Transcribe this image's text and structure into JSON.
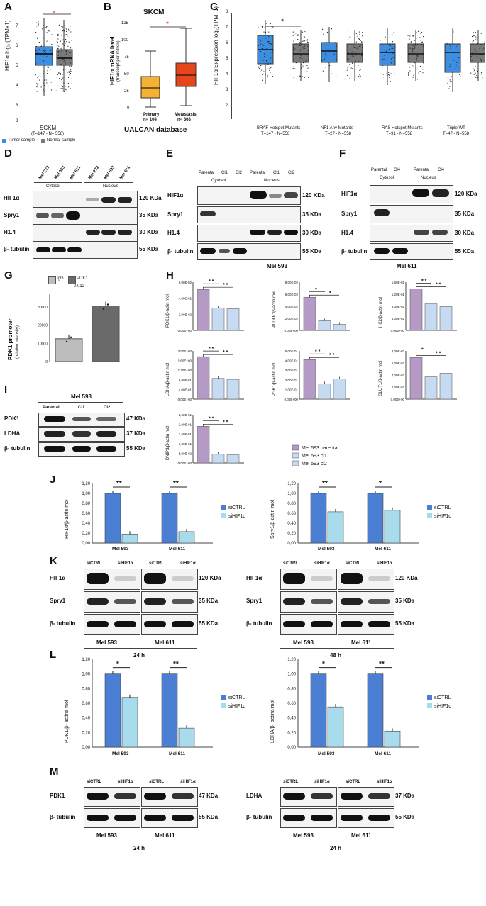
{
  "colors": {
    "tumor": "#3d8ee0",
    "normal": "#7a7a7a",
    "primary": "#f5b133",
    "metastasis": "#e5461a",
    "purple": "#b49ac4",
    "lightblue": "#c6daf2",
    "siCTRL": "#4a7fd4",
    "siHIF": "#a8dced",
    "asterisk_red": "#e23a3a"
  },
  "panels": {
    "A": "A",
    "B": "B",
    "C": "C",
    "D": "D",
    "E": "E",
    "F": "F",
    "G": "G",
    "H": "H",
    "I": "I",
    "J": "J",
    "K": "K",
    "L": "L",
    "M": "M"
  },
  "panel_a": {
    "ylabel": "HIF1α log₂ (TPM+1)",
    "yticks": [
      "7",
      "6",
      "5",
      "4",
      "3",
      "2"
    ],
    "xlabel": "SCKM",
    "xsub": "(T=147 - N= 558)",
    "star": "*",
    "legend": [
      {
        "label": "Tumor sample"
      },
      {
        "label": "Normal sample"
      }
    ]
  },
  "panel_b": {
    "title": "SKCM",
    "ylabel": "HIF1α mRNA level",
    "ylabel2": "(transcript per million)",
    "yticks": [
      "125",
      "100",
      "75",
      "50",
      "25",
      "0"
    ],
    "cats": [
      {
        "name": "Primary",
        "n": "n= 104"
      },
      {
        "name": "Metastasis",
        "n": "n= 368"
      }
    ],
    "star": "*",
    "footer": "UALCAN database"
  },
  "panel_c": {
    "ylabel": "HIF1α Expression log₂(TPM+1)",
    "yticks": [
      "8",
      "7",
      "6",
      "5",
      "4",
      "3",
      "2"
    ],
    "groups": [
      {
        "name": "BRAF Hotspot Mutants",
        "n": "T=147 - N=558"
      },
      {
        "name": "NF1 Any Mutants",
        "n": "T=27 - N=558"
      },
      {
        "name": "RAS Hotspot Mutants",
        "n": "T=91 - N=558"
      },
      {
        "name": "Triple WT",
        "n": "T=47 - N=558"
      }
    ],
    "star": "*"
  },
  "panel_d": {
    "lanes": [
      "Mel 272",
      "Mel 593",
      "Mel 611",
      "Mel 272",
      "Mel 593",
      "Mel 611"
    ],
    "fractions": [
      "Cytosol",
      "Nucleus"
    ],
    "rows": [
      {
        "name": "HIF1α",
        "size": "120 KDa"
      },
      {
        "name": "Spry1",
        "size": "35 KDa"
      },
      {
        "name": "H1.4",
        "size": "30 KDa"
      },
      {
        "name": "β- tubulin",
        "size": "55 KDa"
      }
    ]
  },
  "panel_e": {
    "lanes": [
      "Parental",
      "Cl1",
      "Cl2",
      "Parental",
      "Cl1",
      "Cl2"
    ],
    "fractions": [
      "Cytosol",
      "Nucleus"
    ],
    "rows": [
      {
        "name": "HIF1α",
        "size": "120 KDa"
      },
      {
        "name": "Spry1",
        "size": "35 KDa"
      },
      {
        "name": "H1.4",
        "size": "30 KDa"
      },
      {
        "name": "β- tubulin",
        "size": "55 KDa"
      }
    ],
    "cell": "Mel 593"
  },
  "panel_f": {
    "lanes": [
      "Parental",
      "Cl4",
      "Parental",
      "Cl4"
    ],
    "fractions": [
      "Cytosol",
      "Nucleus"
    ],
    "rows": [
      {
        "name": "HIF1α",
        "size": "120 KDa"
      },
      {
        "name": "Spry1",
        "size": "35 KDa"
      },
      {
        "name": "H1.4",
        "size": "30 KDa"
      },
      {
        "name": "β- tubulin",
        "size": "55 KDa"
      }
    ],
    "cell": "Mel 611"
  },
  "panel_g": {
    "legend": [
      "IgG",
      "PDK1"
    ],
    "pvalue": "0.012",
    "ylabel": "PDK1 promoter",
    "ylabel2": "(relative intensity)",
    "yticks": [
      "30000",
      "20000",
      "10000",
      "0"
    ]
  },
  "panel_h": {
    "charts": [
      {
        "ylabel": "PDK1/β-actin mol",
        "yticks": [
          "6,00E-02",
          "4,00E-02",
          "2,00E-02",
          "0,00E+00"
        ],
        "stars": [
          "* *",
          "* *"
        ]
      },
      {
        "ylabel": "ALDOC/β-actin mol",
        "yticks": [
          "8,00E-02",
          "6,00E-02",
          "4,00E-02",
          "2,00E-02",
          "0,00E+00"
        ],
        "stars": [
          "*",
          "*"
        ]
      },
      {
        "ylabel": "HK2/β-actin mol",
        "yticks": [
          "1,60E-01",
          "1,20E-01",
          "8,00E-02",
          "4,00E-02",
          "0,00E+00"
        ],
        "stars": [
          "* *",
          "* *"
        ]
      },
      {
        "ylabel": "LDHA/β-actin mol",
        "yticks": [
          "2,00E+00",
          "1,60E+00",
          "1,20E+00",
          "8,00E-01",
          "4,00E-01",
          "0,00E+00"
        ],
        "stars": [
          "* *",
          "* *"
        ]
      },
      {
        "ylabel": "PGK1/β-actin mol",
        "yticks": [
          "5,00E-01",
          "4,00E-01",
          "3,00E-01",
          "2,00E-01",
          "1,00E-01",
          "0,00E+00"
        ],
        "stars": [
          "* *",
          "* *"
        ]
      },
      {
        "ylabel": "GLUT1/β-actin mol",
        "yticks": [
          "8,00E-02",
          "6,00E-02",
          "4,00E-02",
          "2,00E-02",
          "0,00E+00"
        ],
        "stars": [
          "*",
          "* *"
        ]
      },
      {
        "ylabel": "BNIP3/β-actin mol",
        "yticks": [
          "2,50E-01",
          "2,00E-01",
          "1,50E-01",
          "1,00E-01",
          "5,00E-02",
          "0,00E+00"
        ],
        "stars": [
          "* *",
          "* *"
        ]
      }
    ],
    "legend": [
      "Mel 593 parental",
      "Mel 593 cl1",
      "Mel 593 cl2"
    ]
  },
  "panel_i": {
    "cell": "Mel 593",
    "lanes": [
      "Parental",
      "Cl1",
      "Cl2"
    ],
    "rows": [
      {
        "name": "PDK1",
        "size": "47 KDa"
      },
      {
        "name": "LDHA",
        "size": "37 KDa"
      },
      {
        "name": "β- tubulin",
        "size": "55 KDa"
      }
    ]
  },
  "panel_j": {
    "charts": [
      {
        "ylabel": "HIF1α/β-actin mol",
        "cats": [
          "Mel 593",
          "Mel 611"
        ],
        "stars": [
          "**",
          "**"
        ]
      },
      {
        "ylabel": "Spry1/β-actin mol",
        "cats": [
          "Mel 593",
          "Mel 611"
        ],
        "stars": [
          "**",
          "*"
        ]
      }
    ],
    "yticks": [
      "1,20",
      "1,00",
      "0,80",
      "0,60",
      "0,40",
      "0,20",
      "0,00"
    ],
    "legend": [
      "siCTRL",
      "siHIF1α"
    ]
  },
  "panel_k": {
    "lanes": [
      "siCTRL",
      "siHIF1α",
      "siCTRL",
      "siHIF1α"
    ],
    "rows": [
      {
        "name": "HIF1α",
        "size": "120 KDa"
      },
      {
        "name": "Spry1",
        "size": "35 KDa"
      },
      {
        "name": "β- tubulin",
        "size": "55 KDa"
      }
    ],
    "cells": [
      "Mel 593",
      "Mel 611"
    ],
    "times": [
      "24 h",
      "48 h"
    ]
  },
  "panel_l": {
    "charts": [
      {
        "ylabel": "PDK1/β- actina mol",
        "cats": [
          "Mel 593",
          "Mel 611"
        ],
        "stars": [
          "*",
          "**"
        ]
      },
      {
        "ylabel": "LDHA/β- actina mol",
        "cats": [
          "Mel 593",
          "Mel 611"
        ],
        "stars": [
          "*",
          "**"
        ]
      }
    ],
    "yticks": [
      "1,20",
      "1,00",
      "0,80",
      "0,60",
      "0,40",
      "0,20",
      "0,00"
    ],
    "legend": [
      "siCTRL",
      "siHIF1α"
    ]
  },
  "panel_m": {
    "lanes": [
      "siCTRL",
      "siHIF1α",
      "siCTRL",
      "siHIF1α"
    ],
    "left_rows": [
      {
        "name": "PDK1",
        "size": "47 KDa"
      },
      {
        "name": "β- tubulin",
        "size": "55 KDa"
      }
    ],
    "right_rows": [
      {
        "name": "LDHA",
        "size": "37 KDa"
      },
      {
        "name": "β- tubulin",
        "size": "55 KDa"
      }
    ],
    "cells": [
      "Mel 593",
      "Mel 611"
    ],
    "time": "24 h"
  },
  "chart_data": [
    {
      "type": "bar",
      "panel": "G",
      "categories": [
        "IgG",
        "PDK1"
      ],
      "values": [
        12500,
        30500
      ],
      "ylim": [
        0,
        35000
      ]
    },
    {
      "type": "bar",
      "panel": "H",
      "title": "",
      "ylabel": "PDK1/β-actin mol",
      "categories": [
        "Mel 593 parental",
        "Mel 593 cl1",
        "Mel 593 cl2"
      ],
      "values": [
        0.051,
        0.028,
        0.027
      ],
      "ylim": [
        0,
        0.06
      ]
    },
    {
      "type": "bar",
      "panel": "H",
      "ylabel": "ALDOC/β-actin mol",
      "categories": [
        "Mel 593 parental",
        "Mel 593 cl1",
        "Mel 593 cl2"
      ],
      "values": [
        0.055,
        0.016,
        0.01
      ],
      "ylim": [
        0,
        0.08
      ]
    },
    {
      "type": "bar",
      "panel": "H",
      "ylabel": "HK2/β-actin mol",
      "categories": [
        "Mel 593 parental",
        "Mel 593 cl1",
        "Mel 593 cl2"
      ],
      "values": [
        0.138,
        0.088,
        0.079
      ],
      "ylim": [
        0,
        0.16
      ]
    },
    {
      "type": "bar",
      "panel": "H",
      "ylabel": "LDHA/β-actin mol",
      "categories": [
        "Mel 593 parental",
        "Mel 593 cl1",
        "Mel 593 cl2"
      ],
      "values": [
        1.76,
        0.86,
        0.82
      ],
      "ylim": [
        0,
        2.0
      ]
    },
    {
      "type": "bar",
      "panel": "H",
      "ylabel": "PGK1/β-actin mol",
      "categories": [
        "Mel 593 parental",
        "Mel 593 cl1",
        "Mel 593 cl2"
      ],
      "values": [
        0.41,
        0.16,
        0.21
      ],
      "ylim": [
        0,
        0.5
      ]
    },
    {
      "type": "bar",
      "panel": "H",
      "ylabel": "GLUT1/β-actin mol",
      "categories": [
        "Mel 593 parental",
        "Mel 593 cl1",
        "Mel 593 cl2"
      ],
      "values": [
        0.069,
        0.037,
        0.043
      ],
      "ylim": [
        0,
        0.08
      ]
    },
    {
      "type": "bar",
      "panel": "H",
      "ylabel": "BNIP3/β-actin mol",
      "categories": [
        "Mel 593 parental",
        "Mel 593 cl1",
        "Mel 593 cl2"
      ],
      "values": [
        0.19,
        0.045,
        0.042
      ],
      "ylim": [
        0,
        0.25
      ]
    },
    {
      "type": "bar",
      "panel": "J",
      "ylabel": "HIF1α/β-actin mol",
      "categories": [
        "Mel 593",
        "Mel 611"
      ],
      "series": [
        {
          "name": "siCTRL",
          "values": [
            1.0,
            1.0
          ]
        },
        {
          "name": "siHIF1α",
          "values": [
            0.18,
            0.23
          ]
        }
      ],
      "ylim": [
        0,
        1.2
      ]
    },
    {
      "type": "bar",
      "panel": "J",
      "ylabel": "Spry1/β-actin mol",
      "categories": [
        "Mel 593",
        "Mel 611"
      ],
      "series": [
        {
          "name": "siCTRL",
          "values": [
            1.0,
            1.0
          ]
        },
        {
          "name": "siHIF1α",
          "values": [
            0.63,
            0.66
          ]
        }
      ],
      "ylim": [
        0,
        1.2
      ]
    },
    {
      "type": "bar",
      "panel": "L",
      "ylabel": "PDK1/β- actina mol",
      "categories": [
        "Mel 593",
        "Mel 611"
      ],
      "series": [
        {
          "name": "siCTRL",
          "values": [
            1.0,
            1.0
          ]
        },
        {
          "name": "siHIF1α",
          "values": [
            0.68,
            0.26
          ]
        }
      ],
      "ylim": [
        0,
        1.2
      ]
    },
    {
      "type": "bar",
      "panel": "L",
      "ylabel": "LDHA/β- actina mol",
      "categories": [
        "Mel 593",
        "Mel 611"
      ],
      "series": [
        {
          "name": "siCTRL",
          "values": [
            1.0,
            1.0
          ]
        },
        {
          "name": "siHIF1α",
          "values": [
            0.55,
            0.22
          ]
        }
      ],
      "ylim": [
        0,
        1.2
      ]
    }
  ]
}
